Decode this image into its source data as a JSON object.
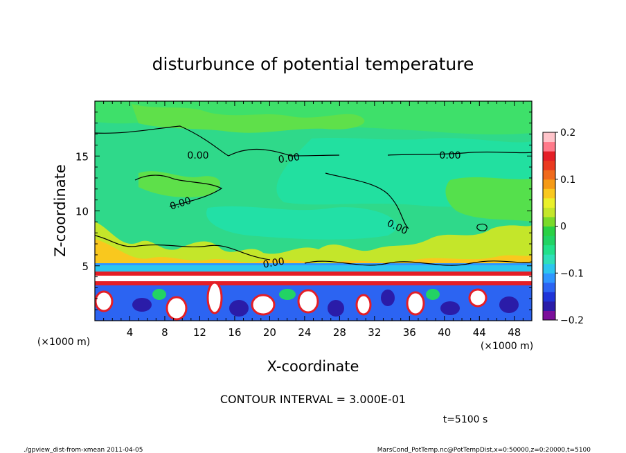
{
  "chart_data": {
    "type": "heatmap",
    "title": "disturbunce of potential temperature",
    "xlabel": "X-coordinate",
    "ylabel": "Z-coordinate",
    "x_unit": "(×1000 m)",
    "y_unit": "(×1000 m)",
    "xlim": [
      0,
      50
    ],
    "ylim": [
      0,
      20
    ],
    "x_ticks": [
      4,
      8,
      12,
      16,
      20,
      24,
      28,
      32,
      36,
      40,
      44,
      48
    ],
    "y_ticks": [
      5,
      10,
      15
    ],
    "colorbar": {
      "min": -0.2,
      "max": 0.2,
      "tick_values": [
        0.2,
        0.1,
        0,
        -0.1,
        -0.2
      ],
      "tick_labels": [
        "0.2",
        "0.1",
        "0",
        "−0.1",
        "−0.2"
      ],
      "colors": [
        "#7b0f9a",
        "#2a1ca8",
        "#1f34d8",
        "#2c64f2",
        "#2f96ff",
        "#2cc6ee",
        "#2fdfb8",
        "#22e08a",
        "#22d364",
        "#2ad145",
        "#7ada2a",
        "#c4e62a",
        "#eaf02a",
        "#f9c81e",
        "#f59a16",
        "#f06a1c",
        "#ea3a20",
        "#e41e26",
        "#ff7a8a",
        "#ffc4ca"
      ]
    },
    "contour_labels": [
      "0.00",
      "0.00",
      "0.00",
      "0.00",
      "0.00",
      "0.00"
    ],
    "contour_interval_text": "CONTOUR INTERVAL = 3.000E-01",
    "time_text": "t=5100 s",
    "footer_left": "./gpview_dist-from-xmean  2011-04-05",
    "footer_right": "MarsCond_PotTemp.nc@PotTempDist,x=0:50000,z=0:20000,t=5100"
  }
}
